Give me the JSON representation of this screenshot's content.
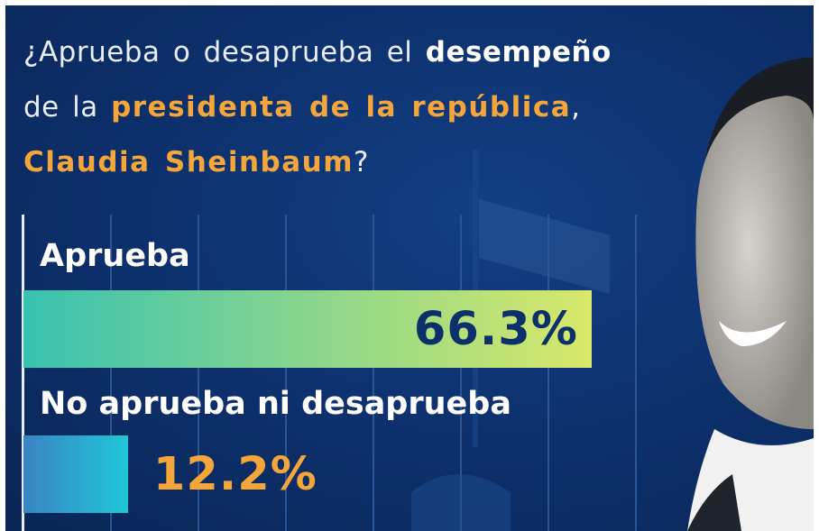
{
  "question": {
    "part1": "¿Aprueba o desaprueba el ",
    "part2": "desempeño",
    "part3": "de la ",
    "part4": "presidenta de la república",
    "part5": ",",
    "part6": "Claudia Sheinbaum",
    "part7": "?"
  },
  "colors": {
    "background": "#0d2f6a",
    "accent_orange": "#f4a63a",
    "value_dark": "#0d2f6a",
    "bar1_start": "#38c2b0",
    "bar1_end": "#d8e86a",
    "bar2_start": "#3a84c4",
    "bar2_end": "#1fc6d9"
  },
  "chart_data": {
    "type": "bar",
    "orientation": "horizontal",
    "categories": [
      "Aprueba",
      "No aprueba ni desaprueba"
    ],
    "values": [
      66.3,
      12.2
    ],
    "value_labels": [
      "66.3%",
      "12.2%"
    ],
    "xlim": [
      0,
      100
    ],
    "grid": true
  }
}
